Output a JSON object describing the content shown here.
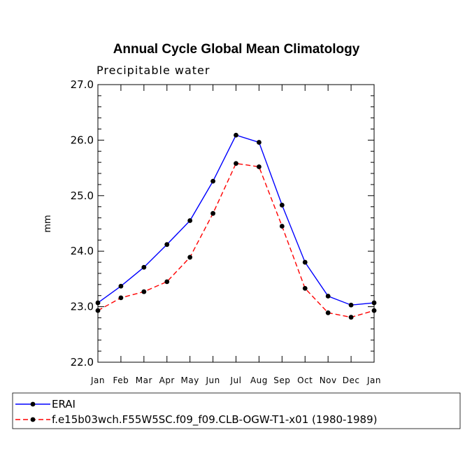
{
  "chart_data": {
    "type": "line",
    "title": "Annual Cycle Global Mean Climatology",
    "subtitle": "Precipitable water",
    "xlabel": "",
    "ylabel": "mm",
    "categories": [
      "Jan",
      "Feb",
      "Mar",
      "Apr",
      "May",
      "Jun",
      "Jul",
      "Aug",
      "Sep",
      "Oct",
      "Nov",
      "Dec",
      "Jan"
    ],
    "ylim": [
      22.0,
      27.0
    ],
    "yticks": [
      "22.0",
      "23.0",
      "24.0",
      "25.0",
      "26.0",
      "27.0"
    ],
    "series": [
      {
        "name": "ERAI",
        "color": "#0000ff",
        "dash": "solid",
        "values": [
          23.07,
          23.37,
          23.71,
          24.12,
          24.55,
          25.26,
          26.09,
          25.96,
          24.83,
          23.8,
          23.19,
          23.03,
          23.07
        ]
      },
      {
        "name": "f.e15b03wch.F55W5SC.f09_f09.CLB-OGW-T1-x01 (1980-1989)",
        "color": "#ff0000",
        "dash": "dashed",
        "values": [
          22.93,
          23.16,
          23.27,
          23.45,
          23.89,
          24.68,
          25.58,
          25.52,
          24.45,
          23.33,
          22.89,
          22.81,
          22.93
        ]
      }
    ],
    "grid": false,
    "legend_position": "bottom"
  }
}
